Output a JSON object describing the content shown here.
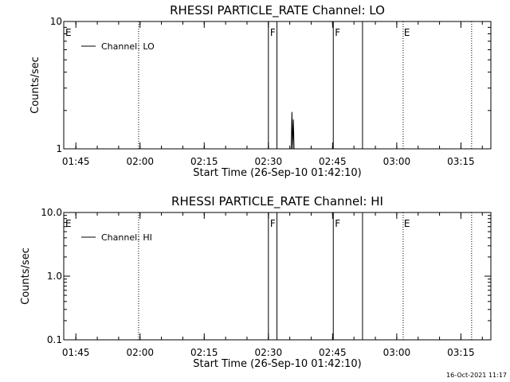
{
  "chart_data": [
    {
      "type": "line",
      "title": "RHESSI PARTICLE_RATE Channel: LO",
      "xlabel": "Start Time (26-Sep-10 01:42:10)",
      "ylabel": "Counts/sec",
      "y_scale": "log",
      "ylim": [
        1,
        10
      ],
      "y_ticks": [
        1,
        10
      ],
      "y_tick_labels": [
        "1",
        "10"
      ],
      "xlim": [
        "01:42:10",
        "03:22:00"
      ],
      "x_ticks": [
        "01:45",
        "02:00",
        "02:15",
        "02:30",
        "02:45",
        "03:00",
        "03:15"
      ],
      "legend": "top-left",
      "grid": false,
      "series": [
        {
          "name": "Channel: LO",
          "color": "#000000",
          "points": [
            {
              "x": "02:35:20",
              "y": 1.0
            },
            {
              "x": "02:35:30",
              "y": 1.95
            },
            {
              "x": "02:35:40",
              "y": 1.0
            },
            {
              "x": "02:35:50",
              "y": 1.7
            },
            {
              "x": "02:36:00",
              "y": 1.0
            }
          ]
        }
      ],
      "solid_markers": [
        {
          "time": "02:30:00",
          "label": "F"
        },
        {
          "time": "02:32:00",
          "label": ""
        },
        {
          "time": "02:45:10",
          "label": "F"
        },
        {
          "time": "02:52:00",
          "label": ""
        }
      ],
      "dotted_markers": [
        {
          "time": "01:42:10",
          "label": "E"
        },
        {
          "time": "01:59:40",
          "label": ""
        },
        {
          "time": "03:01:30",
          "label": "E"
        },
        {
          "time": "03:17:30",
          "label": ""
        }
      ]
    },
    {
      "type": "line",
      "title": "RHESSI PARTICLE_RATE Channel: HI",
      "xlabel": "Start Time (26-Sep-10 01:42:10)",
      "ylabel": "Counts/sec",
      "y_scale": "log",
      "ylim": [
        0.1,
        10
      ],
      "y_ticks": [
        0.1,
        1,
        10
      ],
      "y_tick_labels": [
        "0.1",
        "1.0",
        "10.0"
      ],
      "xlim": [
        "01:42:10",
        "03:22:00"
      ],
      "x_ticks": [
        "01:45",
        "02:00",
        "02:15",
        "02:30",
        "02:45",
        "03:00",
        "03:15"
      ],
      "legend": "top-left",
      "grid": false,
      "series": [
        {
          "name": "Channel: HI",
          "color": "#000000",
          "points": []
        }
      ],
      "solid_markers": [
        {
          "time": "02:30:00",
          "label": "F"
        },
        {
          "time": "02:32:00",
          "label": ""
        },
        {
          "time": "02:45:10",
          "label": "F"
        },
        {
          "time": "02:52:00",
          "label": ""
        }
      ],
      "dotted_markers": [
        {
          "time": "01:42:10",
          "label": "E"
        },
        {
          "time": "01:59:40",
          "label": ""
        },
        {
          "time": "03:01:30",
          "label": "E"
        },
        {
          "time": "03:17:30",
          "label": ""
        }
      ]
    }
  ],
  "footer": {
    "timestamp": "16-Oct-2021 11:17"
  }
}
